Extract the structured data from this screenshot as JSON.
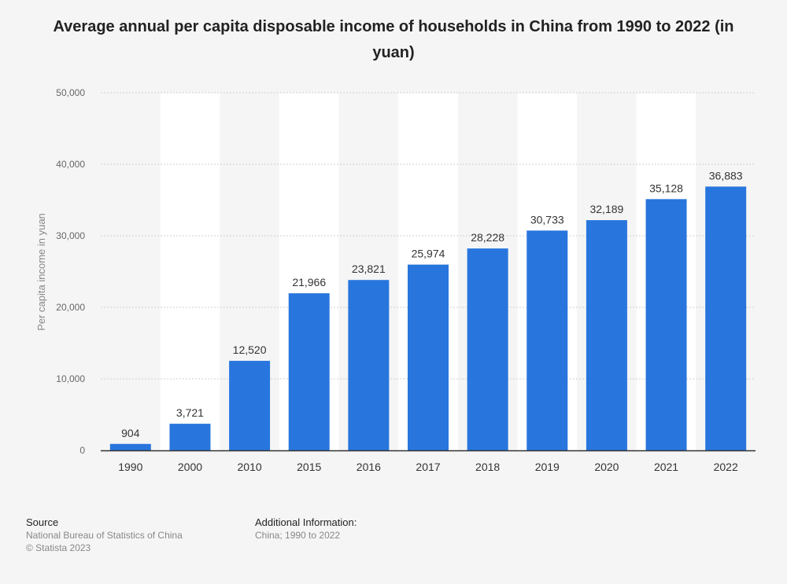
{
  "title": "Average annual per capita disposable income of households in China from 1990 to 2022 (in yuan)",
  "colors": {
    "bar": "#2876dd",
    "band": "#ffffff",
    "background": "#f5f5f5",
    "grid": "#cfcfcf",
    "axis": "#333333"
  },
  "chart_data": {
    "type": "bar",
    "categories": [
      "1990",
      "2000",
      "2010",
      "2015",
      "2016",
      "2017",
      "2018",
      "2019",
      "2020",
      "2021",
      "2022"
    ],
    "values": [
      904,
      3721,
      12520,
      21966,
      23821,
      25974,
      28228,
      30733,
      32189,
      35128,
      36883
    ],
    "value_labels": [
      "904",
      "3,721",
      "12,520",
      "21,966",
      "23,821",
      "25,974",
      "28,228",
      "30,733",
      "32,189",
      "35,128",
      "36,883"
    ],
    "ylabel": "Per capita income in yuan",
    "ylim": [
      0,
      50000
    ],
    "yticks": [
      0,
      10000,
      20000,
      30000,
      40000,
      50000
    ],
    "ytick_labels": [
      "0",
      "10,000",
      "20,000",
      "30,000",
      "40,000",
      "50,000"
    ],
    "grid": true
  },
  "footer": {
    "source_heading": "Source",
    "source_lines": [
      "National Bureau of Statistics of China",
      "© Statista 2023"
    ],
    "info_heading": "Additional Information:",
    "info_text": "China; 1990 to 2022"
  }
}
